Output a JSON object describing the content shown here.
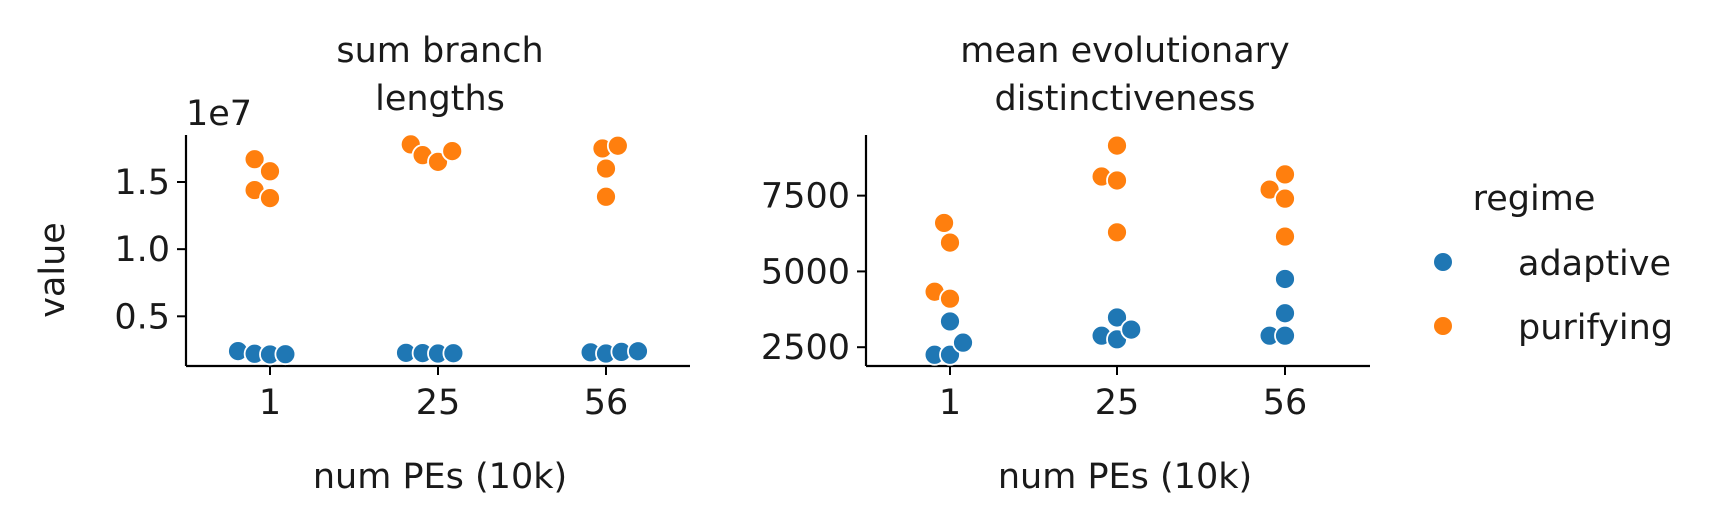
{
  "chart_data": [
    {
      "type": "scatter",
      "title_lines": [
        "sum branch",
        "lengths"
      ],
      "xlabel": "num PEs (10k)",
      "ylabel": "value",
      "offset_label": "1e7",
      "categories": [
        "1",
        "25",
        "56"
      ],
      "yticks": [
        0.5,
        1.0,
        1.5
      ],
      "ytick_labels": [
        "0.5",
        "1.0",
        "1.5"
      ],
      "ylim": [
        0.13,
        1.85
      ],
      "series": [
        {
          "name": "adaptive",
          "points": [
            {
              "x": "1",
              "xoff": -0.27,
              "y": 0.241
            },
            {
              "x": "1",
              "xoff": -0.13,
              "y": 0.221
            },
            {
              "x": "1",
              "xoff": 0.0,
              "y": 0.216
            },
            {
              "x": "1",
              "xoff": 0.13,
              "y": 0.218
            },
            {
              "x": "25",
              "xoff": -0.27,
              "y": 0.228
            },
            {
              "x": "25",
              "xoff": -0.13,
              "y": 0.226
            },
            {
              "x": "25",
              "xoff": 0.0,
              "y": 0.223
            },
            {
              "x": "25",
              "xoff": 0.13,
              "y": 0.225
            },
            {
              "x": "56",
              "xoff": -0.13,
              "y": 0.232
            },
            {
              "x": "56",
              "xoff": 0.0,
              "y": 0.223
            },
            {
              "x": "56",
              "xoff": 0.13,
              "y": 0.235
            },
            {
              "x": "56",
              "xoff": 0.27,
              "y": 0.24
            }
          ]
        },
        {
          "name": "purifying",
          "points": [
            {
              "x": "1",
              "xoff": -0.13,
              "y": 1.67
            },
            {
              "x": "1",
              "xoff": 0.0,
              "y": 1.58
            },
            {
              "x": "1",
              "xoff": -0.13,
              "y": 1.44
            },
            {
              "x": "1",
              "xoff": 0.0,
              "y": 1.38
            },
            {
              "x": "25",
              "xoff": -0.23,
              "y": 1.78
            },
            {
              "x": "25",
              "xoff": -0.13,
              "y": 1.7
            },
            {
              "x": "25",
              "xoff": 0.0,
              "y": 1.65
            },
            {
              "x": "25",
              "xoff": 0.12,
              "y": 1.73
            },
            {
              "x": "56",
              "xoff": -0.03,
              "y": 1.75
            },
            {
              "x": "56",
              "xoff": 0.1,
              "y": 1.77
            },
            {
              "x": "56",
              "xoff": 0.0,
              "y": 1.6
            },
            {
              "x": "56",
              "xoff": 0.0,
              "y": 1.39
            }
          ]
        }
      ]
    },
    {
      "type": "scatter",
      "title_lines": [
        "mean evolutionary",
        "distinctiveness"
      ],
      "xlabel": "num PEs (10k)",
      "categories": [
        "1",
        "25",
        "56"
      ],
      "yticks": [
        2500,
        5000,
        7500
      ],
      "ytick_labels": [
        "2500",
        "5000",
        "7500"
      ],
      "ylim": [
        1880,
        9500
      ],
      "series": [
        {
          "name": "adaptive",
          "points": [
            {
              "x": "1",
              "xoff": -0.13,
              "y": 2250
            },
            {
              "x": "1",
              "xoff": 0.0,
              "y": 2250
            },
            {
              "x": "1",
              "xoff": 0.0,
              "y": 3350
            },
            {
              "x": "1",
              "xoff": 0.11,
              "y": 2650
            },
            {
              "x": "25",
              "xoff": -0.13,
              "y": 2880
            },
            {
              "x": "25",
              "xoff": 0.0,
              "y": 2760
            },
            {
              "x": "25",
              "xoff": 0.0,
              "y": 3480
            },
            {
              "x": "25",
              "xoff": 0.12,
              "y": 3080
            },
            {
              "x": "56",
              "xoff": -0.13,
              "y": 2880
            },
            {
              "x": "56",
              "xoff": 0.0,
              "y": 2880
            },
            {
              "x": "56",
              "xoff": 0.0,
              "y": 3620
            },
            {
              "x": "56",
              "xoff": 0.0,
              "y": 4750
            }
          ]
        },
        {
          "name": "purifying",
          "points": [
            {
              "x": "1",
              "xoff": -0.05,
              "y": 6600
            },
            {
              "x": "1",
              "xoff": 0.0,
              "y": 5950
            },
            {
              "x": "1",
              "xoff": -0.13,
              "y": 4330
            },
            {
              "x": "1",
              "xoff": 0.0,
              "y": 4100
            },
            {
              "x": "25",
              "xoff": -0.13,
              "y": 8130
            },
            {
              "x": "25",
              "xoff": 0.0,
              "y": 8000
            },
            {
              "x": "25",
              "xoff": 0.0,
              "y": 9150
            },
            {
              "x": "25",
              "xoff": 0.0,
              "y": 6290
            },
            {
              "x": "56",
              "xoff": -0.13,
              "y": 7700
            },
            {
              "x": "56",
              "xoff": 0.0,
              "y": 7400
            },
            {
              "x": "56",
              "xoff": 0.0,
              "y": 8200
            },
            {
              "x": "56",
              "xoff": 0.0,
              "y": 6150
            }
          ]
        }
      ]
    }
  ],
  "legend": {
    "title": "regime",
    "placement": "right",
    "items": [
      {
        "label": "adaptive",
        "color": "#1f77b4"
      },
      {
        "label": "purifying",
        "color": "#ff7f0e"
      }
    ]
  },
  "colors": {
    "adaptive": "#1f77b4",
    "purifying": "#ff7f0e"
  }
}
